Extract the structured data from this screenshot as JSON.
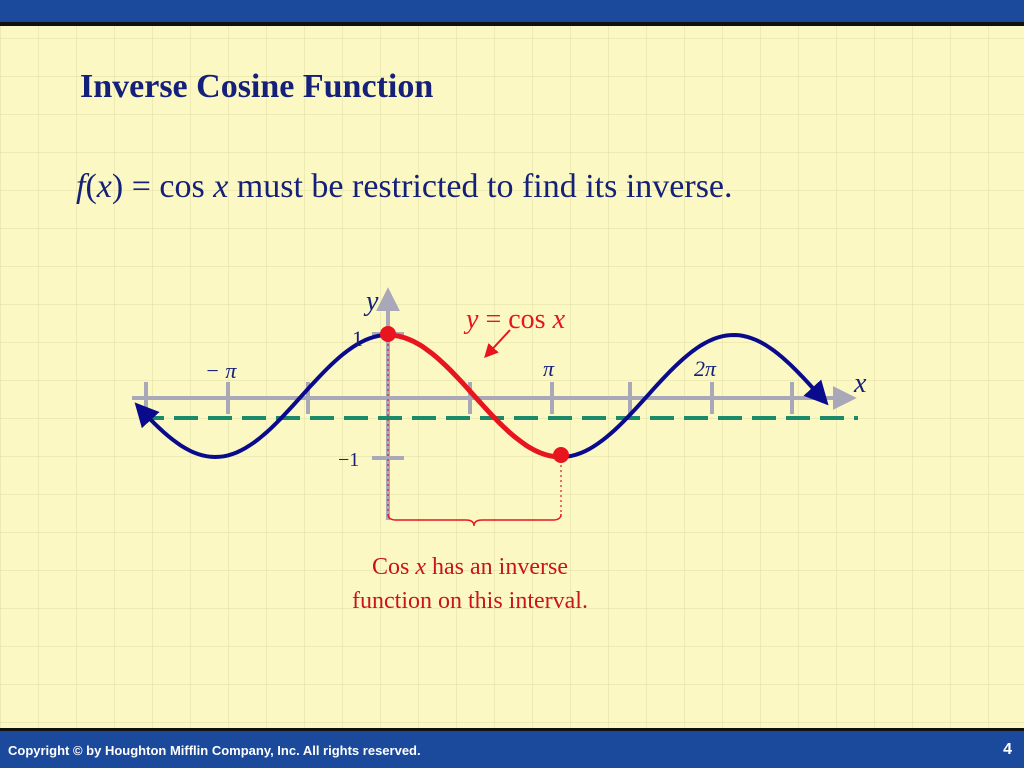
{
  "slide": {
    "title": "Inverse Cosine Function",
    "subtitle": {
      "f": "f",
      "x1": "x",
      "eq": ") = cos ",
      "x2": "x",
      "rest": " must be restricted to find its inverse."
    },
    "footer": {
      "copyright": "Copyright © by Houghton Mifflin Company, Inc. All rights reserved.",
      "page": "4"
    },
    "colors": {
      "title": "#14207A",
      "curve": "#0A0A8C",
      "restricted": "#E8141E",
      "dashed_line": "#1A8A6A",
      "axis": "#A8A8B8",
      "background": "#FCF8C4",
      "bars": "#1B4A9C"
    }
  },
  "graph": {
    "y_axis_label": "y",
    "x_axis_label": "x",
    "tick_labels": {
      "one": "1",
      "neg_one": "−1",
      "neg_pi": "− π",
      "pi": "π",
      "two_pi": "2π"
    },
    "curve_label": {
      "y": "y",
      "eq": " = cos ",
      "x": "x"
    },
    "restricted_interval": [
      "0",
      "π"
    ],
    "note": {
      "line1_pre": "Cos ",
      "line1_x": "x",
      "line1_post": " has an inverse",
      "line2": "function on this interval."
    }
  }
}
